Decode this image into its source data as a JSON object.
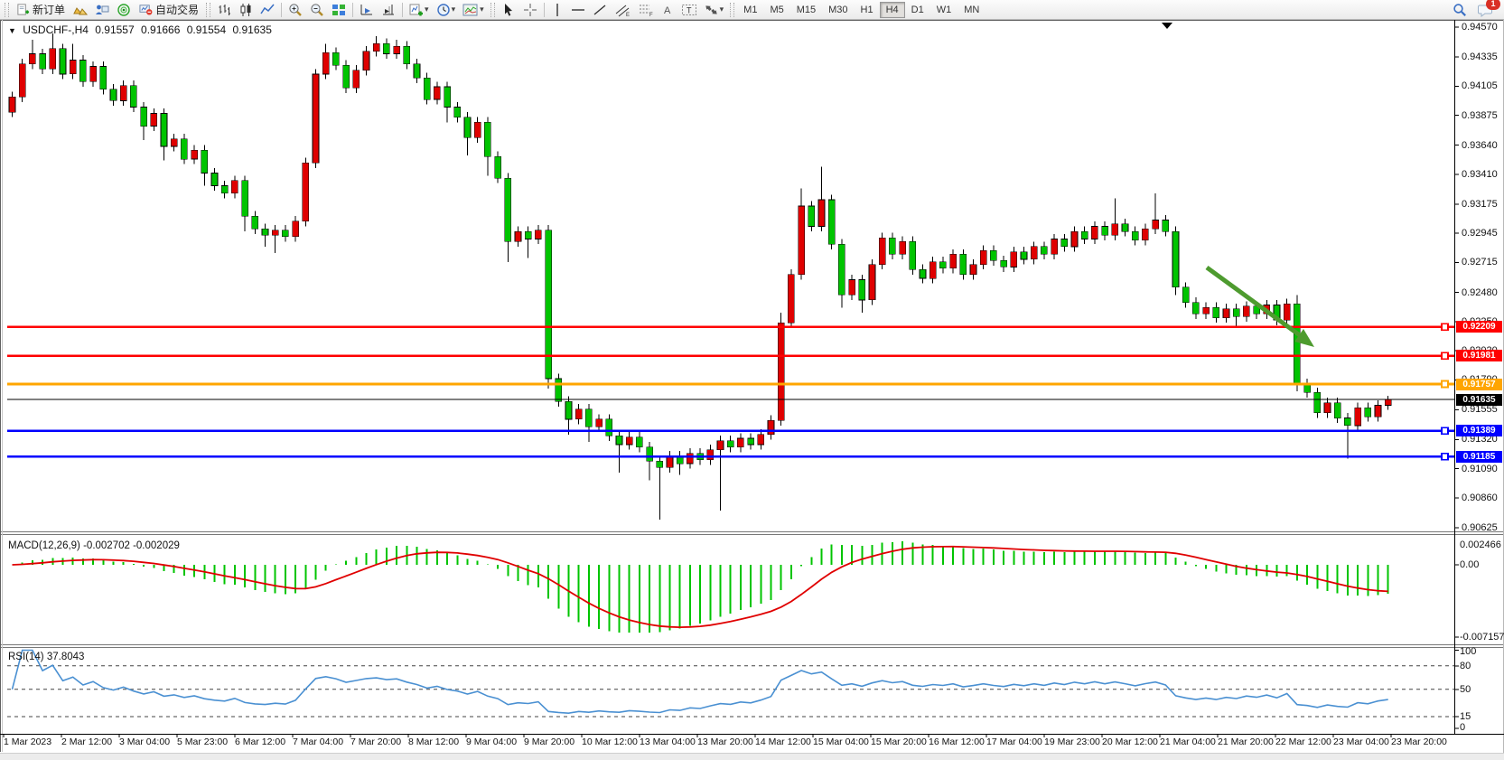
{
  "icons": {
    "dropdown": "▾",
    "collapse": "▼"
  },
  "toolbar": {
    "new_order": "新订单",
    "auto_trading": "自动交易",
    "timeframes": [
      "M1",
      "M5",
      "M15",
      "M30",
      "H1",
      "H4",
      "D1",
      "W1",
      "MN"
    ],
    "active_timeframe": "H4",
    "notification_badge": "1"
  },
  "title": {
    "marker": "▼",
    "symbol_period": "USDCHF-,H4",
    "open": "0.91557",
    "high": "0.91666",
    "low": "0.91554",
    "close": "0.91635"
  },
  "colors": {
    "bull": "#DF0000",
    "bear": "#00C400",
    "wick": "#000000",
    "macd_hist": "#00C400",
    "macd_signal": "#E00000",
    "rsi_line": "#4A90D2",
    "arrow": "#4E9B2F",
    "line_red": "#FF0000",
    "line_orange": "#FFA500",
    "line_blue": "#0000FF",
    "current_price_bg": "#000000"
  },
  "price_axis_ticks": [
    "0.94570",
    "0.94335",
    "0.94105",
    "0.93875",
    "0.93640",
    "0.93410",
    "0.93175",
    "0.92945",
    "0.92715",
    "0.92480",
    "0.92250",
    "0.92020",
    "0.91790",
    "0.91555",
    "0.91320",
    "0.91090",
    "0.90860",
    "0.90625"
  ],
  "hlines": [
    {
      "label": "0.92209",
      "value": 0.92209,
      "color": "#FF0000"
    },
    {
      "label": "0.91981",
      "value": 0.91981,
      "color": "#FF0000"
    },
    {
      "label": "0.91757",
      "value": 0.91757,
      "color": "#FFA500"
    },
    {
      "label": "0.91389",
      "value": 0.91389,
      "color": "#0000FF"
    },
    {
      "label": "0.91185",
      "value": 0.91185,
      "color": "#0000FF"
    }
  ],
  "current_price": {
    "label": "0.91635",
    "value": 0.91635
  },
  "macd": {
    "name": "MACD(12,26,9)",
    "values": "-0.002702 -0.002029",
    "axis_labels": [
      "0.002466",
      "0.00",
      "-0.007157"
    ],
    "axis_values": [
      0.002466,
      0.0,
      -0.007157
    ]
  },
  "rsi": {
    "name": "RSI(14)",
    "value": "37.8043",
    "axis_labels": [
      "100",
      "80",
      "50",
      "15",
      "0"
    ],
    "levels_dashed": [
      80,
      50,
      15
    ]
  },
  "time_axis": [
    "1 Mar 2023",
    "2 Mar 12:00",
    "3 Mar 04:00",
    "5 Mar 23:00",
    "6 Mar 12:00",
    "7 Mar 04:00",
    "7 Mar 20:00",
    "8 Mar 12:00",
    "9 Mar 04:00",
    "9 Mar 20:00",
    "10 Mar 12:00",
    "13 Mar 04:00",
    "13 Mar 20:00",
    "14 Mar 12:00",
    "15 Mar 04:00",
    "15 Mar 20:00",
    "16 Mar 12:00",
    "17 Mar 04:00",
    "19 Mar 23:00",
    "20 Mar 12:00",
    "21 Mar 04:00",
    "21 Mar 20:00",
    "22 Mar 12:00",
    "23 Mar 04:00",
    "23 Mar 20:00"
  ],
  "chart_data": {
    "type": "candlestick",
    "symbol": "USDCHF",
    "period": "H4",
    "title": "USDCHF-,H4  0.91557 0.91666 0.91554 0.91635",
    "ylim": [
      0.90625,
      0.9457
    ],
    "up_color_convention": "red-up green-down (CN)",
    "first_open": 0.939,
    "default_wick": 0.0004,
    "closes": [
      0.9402,
      0.9428,
      0.9436,
      0.9424,
      0.944,
      0.942,
      0.9431,
      0.9414,
      0.9426,
      0.9408,
      0.9399,
      0.9411,
      0.9394,
      0.9379,
      0.9389,
      0.9363,
      0.9369,
      0.9353,
      0.936,
      0.9342,
      0.9332,
      0.9326,
      0.9336,
      0.9308,
      0.9298,
      0.9293,
      0.9297,
      0.9292,
      0.9304,
      0.935,
      0.942,
      0.9437,
      0.9427,
      0.9409,
      0.9423,
      0.9438,
      0.9444,
      0.9436,
      0.9442,
      0.9428,
      0.9417,
      0.94,
      0.941,
      0.9394,
      0.9386,
      0.937,
      0.9382,
      0.9355,
      0.9338,
      0.9288,
      0.9296,
      0.929,
      0.9297,
      0.918,
      0.9162,
      0.9148,
      0.9156,
      0.9142,
      0.9148,
      0.9135,
      0.9128,
      0.9134,
      0.9126,
      0.9115,
      0.911,
      0.9119,
      0.9113,
      0.9121,
      0.9116,
      0.9124,
      0.9131,
      0.9126,
      0.9133,
      0.9128,
      0.9136,
      0.9147,
      0.9224,
      0.9262,
      0.9316,
      0.93,
      0.9321,
      0.9286,
      0.9246,
      0.9258,
      0.9242,
      0.927,
      0.9291,
      0.9278,
      0.9288,
      0.9266,
      0.9259,
      0.9272,
      0.9267,
      0.9278,
      0.9262,
      0.927,
      0.9281,
      0.9273,
      0.9268,
      0.928,
      0.9274,
      0.9284,
      0.9278,
      0.929,
      0.9284,
      0.9296,
      0.929,
      0.93,
      0.9293,
      0.9302,
      0.9296,
      0.9289,
      0.9298,
      0.9305,
      0.9296,
      0.9252,
      0.924,
      0.9231,
      0.9236,
      0.9228,
      0.9235,
      0.9229,
      0.9237,
      0.9231,
      0.9238,
      0.9226,
      0.9239,
      0.9176,
      0.9169,
      0.9153,
      0.9161,
      0.9149,
      0.9143,
      0.9157,
      0.915,
      0.9159,
      0.91635
    ],
    "wick_overrides": {
      "2": {
        "h": 0.9447
      },
      "4": {
        "h": 0.9452
      },
      "6": {
        "h": 0.9444
      },
      "13": {
        "l": 0.9368
      },
      "15": {
        "l": 0.9352
      },
      "19": {
        "l": 0.9332
      },
      "23": {
        "l": 0.9296
      },
      "25": {
        "l": 0.9284
      },
      "26": {
        "l": 0.9279
      },
      "31": {
        "h": 0.9444
      },
      "36": {
        "h": 0.945
      },
      "38": {
        "h": 0.9447
      },
      "43": {
        "l": 0.9382
      },
      "45": {
        "l": 0.9356
      },
      "47": {
        "l": 0.934
      },
      "49": {
        "l": 0.9272
      },
      "51": {
        "l": 0.9275
      },
      "53": {
        "l": 0.9172
      },
      "55": {
        "l": 0.9136
      },
      "57": {
        "l": 0.913
      },
      "60": {
        "l": 0.9106
      },
      "63": {
        "l": 0.91
      },
      "64": {
        "l": 0.9069
      },
      "66": {
        "l": 0.9104
      },
      "70": {
        "l": 0.9076
      },
      "76": {
        "h": 0.9232
      },
      "78": {
        "h": 0.933
      },
      "80": {
        "h": 0.9347
      },
      "82": {
        "l": 0.9236
      },
      "84": {
        "l": 0.9232
      },
      "109": {
        "h": 0.9322
      },
      "113": {
        "h": 0.9326
      },
      "115": {
        "l": 0.9246
      },
      "121": {
        "l": 0.9221
      },
      "127": {
        "h": 0.9246,
        "l": 0.917
      },
      "132": {
        "l": 0.9117
      },
      "136": {
        "h": 0.91666,
        "l": 0.91554
      }
    },
    "indicators": [
      {
        "type": "macd",
        "params": [
          12,
          26,
          9
        ],
        "current": "-0.002702 -0.002029",
        "style": "green histogram + red signal line"
      },
      {
        "type": "rsi",
        "params": [
          14
        ],
        "current": 37.8043,
        "levels": [
          80,
          50,
          15
        ],
        "style": "blue line"
      }
    ],
    "annotations": [
      {
        "type": "hline",
        "price": 0.92209,
        "color": "red"
      },
      {
        "type": "hline",
        "price": 0.91981,
        "color": "red"
      },
      {
        "type": "hline",
        "price": 0.91757,
        "color": "orange"
      },
      {
        "type": "hline",
        "price": 0.91389,
        "color": "blue"
      },
      {
        "type": "hline",
        "price": 0.91185,
        "color": "blue"
      },
      {
        "type": "arrow-down-right",
        "color": "green",
        "from_price": 0.927,
        "to_price": 0.921
      }
    ]
  }
}
